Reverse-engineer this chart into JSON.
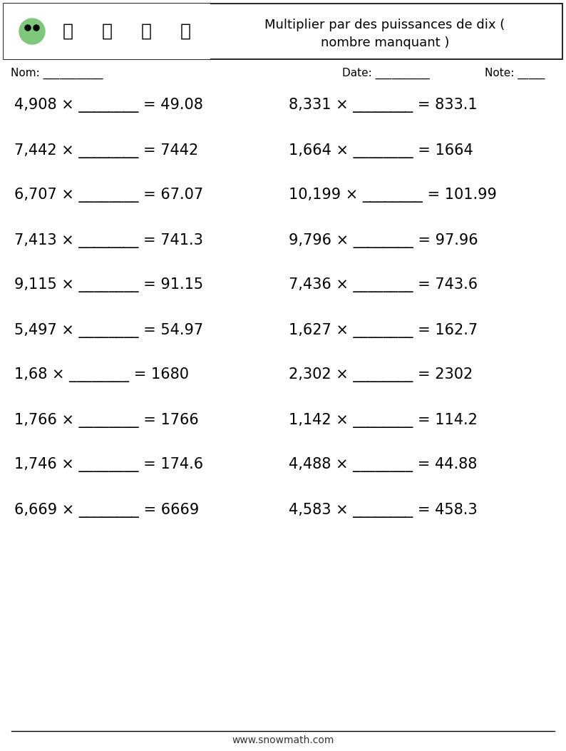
{
  "title_line1": "Multiplier par des puissances de dix (",
  "title_line2": "nombre manquant )",
  "header_box_color": "#ffffff",
  "background_color": "#ffffff",
  "text_color": "#000000",
  "nom_label": "Nom: ___________",
  "date_label": "Date: __________",
  "note_label": "Note: _____",
  "footer_text": "www.snowmath.com",
  "left_problems": [
    "4,908 × ________ = 49.08",
    "7,442 × ________ = 7442",
    "6,707 × ________ = 67.07",
    "7,413 × ________ = 741.3",
    "9,115 × ________ = 91.15",
    "5,497 × ________ = 54.97",
    "1,68 × ________ = 1680",
    "1,766 × ________ = 1766",
    "1,746 × ________ = 174.6",
    "6,669 × ________ = 6669"
  ],
  "right_problems": [
    "8,331 × ________ = 833.1",
    "1,664 × ________ = 1664",
    "10,199 × ________ = 101.99",
    "9,796 × ________ = 97.96",
    "7,436 × ________ = 743.6",
    "1,627 × ________ = 162.7",
    "2,302 × ________ = 2302",
    "1,142 × ________ = 114.2",
    "4,488 × ________ = 44.88",
    "4,583 × ________ = 458.3"
  ],
  "font_size_problems": 15,
  "font_size_header": 13,
  "font_size_nom": 11,
  "font_size_footer": 10
}
